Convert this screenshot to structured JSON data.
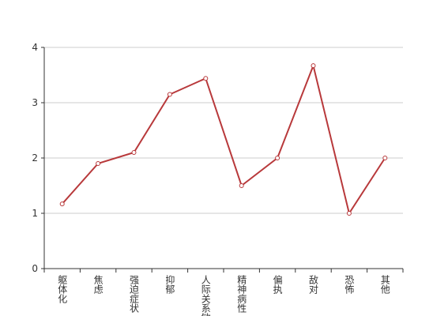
{
  "chart_data": {
    "type": "line",
    "categories": [
      "躯体化",
      "焦虑",
      "强迫症状",
      "抑郁",
      "人际关系敏感",
      "精神病性",
      "偏执",
      "敌对",
      "恐怖",
      "其他"
    ],
    "values": [
      1.17,
      1.9,
      2.1,
      3.15,
      3.44,
      1.5,
      2.0,
      3.67,
      1.0,
      2.0
    ],
    "color": "#b8393b",
    "ylim": [
      0,
      4
    ],
    "yticks": [
      0,
      1,
      2,
      3,
      4
    ],
    "grid": true
  }
}
